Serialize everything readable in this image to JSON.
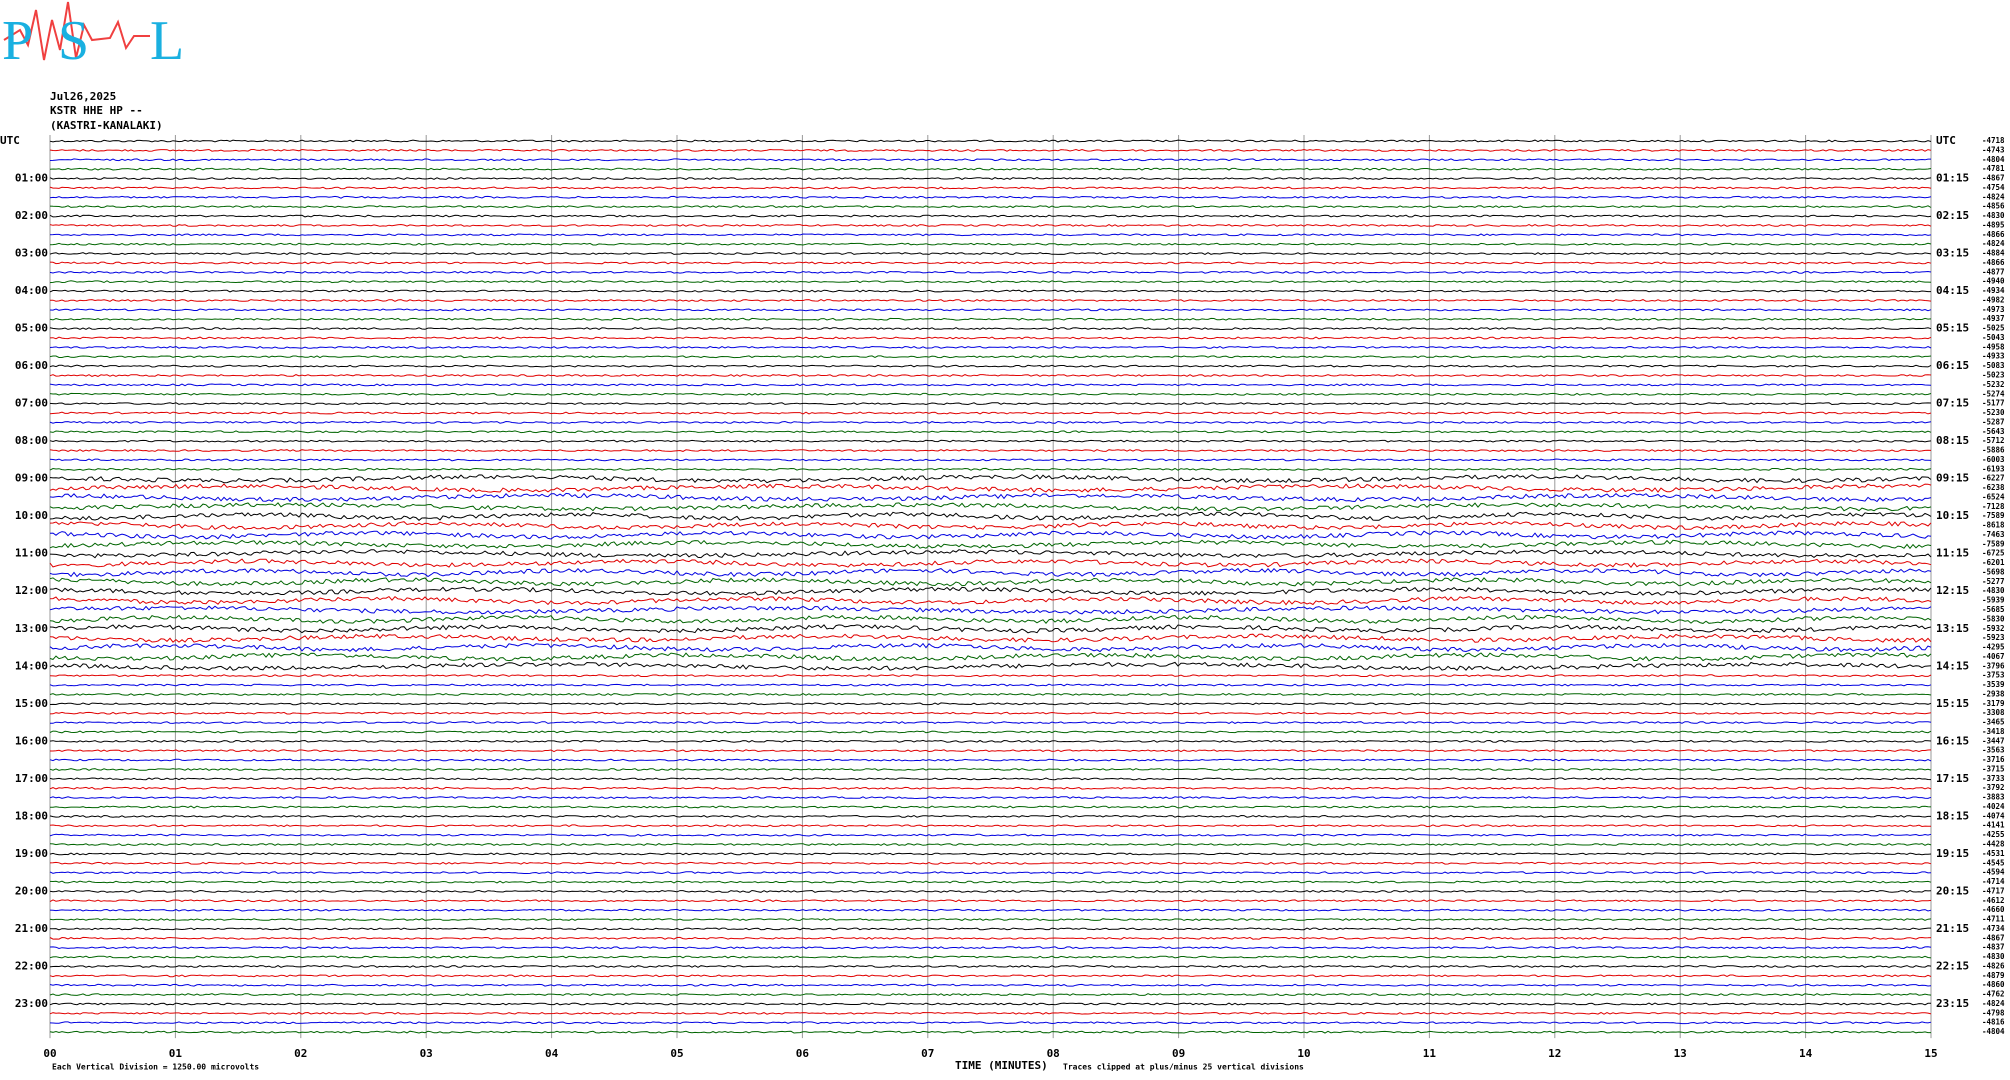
{
  "chart_data": {
    "type": "helicorder",
    "logo": {
      "letters": [
        "P",
        "S",
        "L"
      ]
    },
    "date": "Jul26,2025",
    "station": "KSTR HHE HP --",
    "location": "(KASTRI-KANALAKI)",
    "left_labels": [
      "UTC",
      "01:00",
      "02:00",
      "03:00",
      "04:00",
      "05:00",
      "06:00",
      "07:00",
      "08:00",
      "09:00",
      "10:00",
      "11:00",
      "12:00",
      "13:00",
      "14:00",
      "15:00",
      "16:00",
      "17:00",
      "18:00",
      "19:00",
      "20:00",
      "21:00",
      "22:00",
      "23:00"
    ],
    "right_labels": [
      "UTC",
      "01:15",
      "02:15",
      "03:15",
      "04:15",
      "05:15",
      "06:15",
      "07:15",
      "08:15",
      "09:15",
      "10:15",
      "11:15",
      "12:15",
      "13:15",
      "14:15",
      "15:15",
      "16:15",
      "17:15",
      "18:15",
      "19:15",
      "20:15",
      "21:15",
      "22:15",
      "23:15"
    ],
    "trace_offsets": [
      -4718,
      -4743,
      -4804,
      -4781,
      -4867,
      -4754,
      -4824,
      -4856,
      -4830,
      -4895,
      -4866,
      -4824,
      -4884,
      -4866,
      -4877,
      -4940,
      -4934,
      -4982,
      -4973,
      -4937,
      -5025,
      -5043,
      -4958,
      -4933,
      -5083,
      -5023,
      -5232,
      -5274,
      -5177,
      -5230,
      -5287,
      -5643,
      -5712,
      -5886,
      -6003,
      -6193,
      -6227,
      -6238,
      -6524,
      -7128,
      -7589,
      -8618,
      -7463,
      -7589,
      -6725,
      -6201,
      -5698,
      -5277,
      -4830,
      -5939,
      -5685,
      -5830,
      -5932,
      -5923,
      -4295,
      -4067,
      -3796,
      -3753,
      -3539,
      -2938,
      -3179,
      -3308,
      -3465,
      -3418,
      -3447,
      -3563,
      -3716,
      -3715,
      -3733,
      -3792,
      -3883,
      -4024,
      -4074,
      -4141,
      -4255,
      -4428,
      -4531,
      -4545,
      -4594,
      -4714,
      -4717,
      -4612,
      -4660,
      -4711,
      -4734,
      -4867,
      -4837,
      -4830,
      -4826,
      -4879,
      -4860,
      -4762,
      -4824,
      -4798,
      -4816,
      -4804
    ],
    "colors": [
      "#000000",
      "#e00000",
      "#0000e0",
      "#006400"
    ],
    "xlim": [
      0,
      15
    ],
    "xticks": [
      {
        "value": 0,
        "label": "00"
      },
      {
        "value": 1,
        "label": "01"
      },
      {
        "value": 2,
        "label": "02"
      },
      {
        "value": 3,
        "label": "03"
      },
      {
        "value": 4,
        "label": "04"
      },
      {
        "value": 5,
        "label": "05"
      },
      {
        "value": 6,
        "label": "06"
      },
      {
        "value": 7,
        "label": "07"
      },
      {
        "value": 8,
        "label": "08"
      },
      {
        "value": 9,
        "label": "09"
      },
      {
        "value": 10,
        "label": "10"
      },
      {
        "value": 11,
        "label": "11"
      },
      {
        "value": 12,
        "label": "12"
      },
      {
        "value": 13,
        "label": "13"
      },
      {
        "value": 14,
        "label": "14"
      },
      {
        "value": 15,
        "label": "15"
      }
    ],
    "xlabel": "TIME (MINUTES)",
    "scale_note": "Each Vertical Division = 1250.00 microvolts",
    "clip_note": "Traces clipped at plus/minus 25 vertical divisions"
  }
}
